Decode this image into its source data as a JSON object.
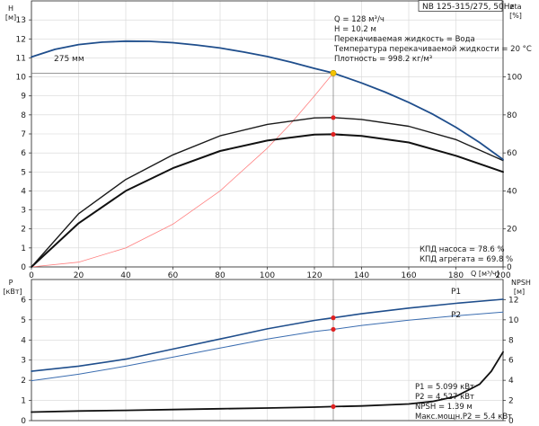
{
  "chart_data": [
    {
      "type": "line",
      "title": "NB 125-315/275, 50Hz",
      "xlabel": "Q [м³/ч]",
      "ylabel": "H [м]",
      "y2label": "eta [%]",
      "xlim": [
        0,
        200
      ],
      "ylim": [
        0,
        14
      ],
      "y2lim": [
        0,
        140
      ],
      "grid": true,
      "x_ticks": [
        "0",
        "20",
        "40",
        "60",
        "80",
        "100",
        "120",
        "140",
        "160",
        "180",
        "200"
      ],
      "y_ticks": [
        "0",
        "1",
        "2",
        "3",
        "4",
        "5",
        "6",
        "7",
        "8",
        "9",
        "10",
        "11",
        "12",
        "13"
      ],
      "y2_ticks": [
        "0",
        "20",
        "40",
        "60",
        "80",
        "100"
      ],
      "curve_label": "275 мм",
      "info_lines": [
        "Q = 128 м³/ч",
        "H = 10.2 м",
        "Перекачиваемая жидкость = Вода",
        "Температура перекачиваемой жидкости = 20 °C",
        "Плотность = 998.2 кг/м³"
      ],
      "efficiency_lines": [
        "КПД насоса = 78.6 %",
        "КПД агрегата = 69.8 %"
      ],
      "series": [
        {
          "role": "head",
          "axis": "left",
          "color": "#1f4e8c",
          "x": [
            0,
            10,
            20,
            30,
            40,
            50,
            60,
            70,
            80,
            90,
            100,
            110,
            120,
            128,
            140,
            150,
            160,
            170,
            180,
            190,
            200
          ],
          "y": [
            11.05,
            11.45,
            11.7,
            11.83,
            11.88,
            11.87,
            11.8,
            11.68,
            11.52,
            11.31,
            11.07,
            10.78,
            10.45,
            10.2,
            9.68,
            9.2,
            8.66,
            8.05,
            7.35,
            6.55,
            5.65
          ]
        },
        {
          "role": "system",
          "axis": "left",
          "color": "#ff7f7f",
          "x": [
            0,
            20,
            40,
            60,
            80,
            100,
            110,
            120,
            128
          ],
          "y": [
            0,
            0.25,
            1.0,
            2.25,
            4.0,
            6.25,
            7.55,
            9.0,
            10.2
          ]
        },
        {
          "role": "pump-efficiency",
          "axis": "right",
          "color": "#1a1a1a",
          "x": [
            0,
            20,
            40,
            60,
            80,
            100,
            120,
            128,
            140,
            160,
            180,
            200
          ],
          "y": [
            0,
            28,
            46,
            59,
            69,
            75,
            78.4,
            78.6,
            77.6,
            74,
            67,
            56
          ]
        },
        {
          "role": "unit-efficiency",
          "axis": "right",
          "color": "#111111",
          "x": [
            0,
            20,
            40,
            60,
            80,
            100,
            120,
            128,
            140,
            160,
            180,
            200
          ],
          "y": [
            0,
            23,
            40,
            52,
            61,
            66.5,
            69.6,
            69.8,
            68.9,
            65.5,
            58.5,
            50
          ]
        },
        {
          "role": "operating-point-head",
          "axis": "left",
          "color": "#f5c400",
          "marker": "circle",
          "x": [
            128
          ],
          "y": [
            10.2
          ]
        },
        {
          "role": "operating-point-efficiency",
          "axis": "right",
          "color": "#e02020",
          "marker": "circle",
          "x": [
            128,
            128
          ],
          "y": [
            78.6,
            69.8
          ]
        }
      ]
    },
    {
      "type": "line",
      "ylabel": "P [кВт]",
      "y2label": "NPSH [м]",
      "xlim": [
        0,
        200
      ],
      "ylim": [
        0,
        7
      ],
      "y2lim": [
        0,
        14
      ],
      "grid": true,
      "y_ticks": [
        "0",
        "1",
        "2",
        "3",
        "4",
        "5",
        "6"
      ],
      "y2_ticks": [
        "0",
        "2",
        "4",
        "6",
        "8",
        "10",
        "12"
      ],
      "info_lines": [
        "P1 = 5.099 кВт",
        "P2 = 4.527 кВт",
        "NPSH = 1.39 м",
        "Макс.мощн.P2 = 5.4 кВт"
      ],
      "series": [
        {
          "name": "P1",
          "axis": "left",
          "color": "#1f4e8c",
          "x": [
            0,
            20,
            40,
            60,
            80,
            100,
            120,
            128,
            140,
            160,
            180,
            200
          ],
          "y": [
            2.45,
            2.7,
            3.05,
            3.55,
            4.05,
            4.55,
            4.97,
            5.099,
            5.3,
            5.58,
            5.82,
            6.02
          ]
        },
        {
          "name": "P2",
          "axis": "left",
          "color": "#3b6db0",
          "x": [
            0,
            20,
            40,
            60,
            80,
            100,
            120,
            128,
            140,
            160,
            180,
            200
          ],
          "y": [
            1.98,
            2.3,
            2.7,
            3.15,
            3.6,
            4.05,
            4.42,
            4.527,
            4.72,
            4.98,
            5.2,
            5.38
          ]
        },
        {
          "role": "npsh",
          "axis": "right",
          "color": "#111111",
          "x": [
            0,
            20,
            40,
            60,
            80,
            100,
            120,
            128,
            140,
            160,
            170,
            180,
            190,
            195,
            200
          ],
          "y": [
            0.85,
            0.95,
            1.02,
            1.1,
            1.18,
            1.25,
            1.34,
            1.39,
            1.45,
            1.65,
            1.9,
            2.4,
            3.6,
            4.9,
            6.8
          ]
        },
        {
          "role": "operating-point-power",
          "axis": "left",
          "color": "#e02020",
          "marker": "circle",
          "x": [
            128,
            128
          ],
          "y": [
            5.099,
            4.527
          ]
        },
        {
          "role": "operating-point-npsh",
          "axis": "right",
          "color": "#e02020",
          "marker": "circle",
          "x": [
            128
          ],
          "y": [
            1.39
          ]
        }
      ]
    }
  ],
  "labels": {
    "top_left_unit_symbol": "H",
    "top_left_unit": "[м]",
    "top_right_unit_symbol": "eta",
    "top_right_unit": "[%]",
    "x_axis_unit": "Q [м³/ч]",
    "bottom_left_unit_symbol": "P",
    "bottom_left_unit": "[кВт]",
    "bottom_right_unit_symbol": "NPSH",
    "bottom_right_unit": "[м]",
    "p1_label": "P1",
    "p2_label": "P2"
  }
}
